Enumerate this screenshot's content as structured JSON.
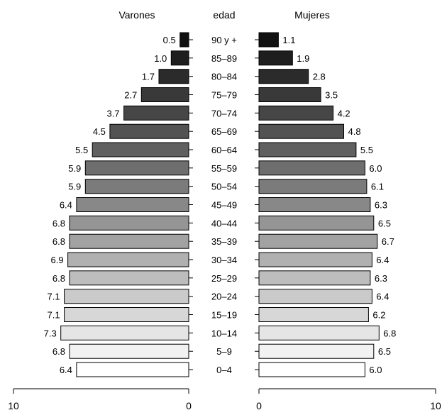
{
  "chart_data": {
    "type": "bar",
    "subtype": "population-pyramid",
    "headers": {
      "left": "Varones",
      "center": "edad",
      "right": "Mujeres"
    },
    "categories": [
      "90 y +",
      "85–89",
      "80–84",
      "75–79",
      "70–74",
      "65–69",
      "60–64",
      "55–59",
      "50–54",
      "45–49",
      "40–44",
      "35–39",
      "30–34",
      "25–29",
      "20–24",
      "15–19",
      "10–14",
      "5–9",
      "0–4"
    ],
    "series": [
      {
        "name": "Varones",
        "values": [
          0.5,
          1.0,
          1.7,
          2.7,
          3.7,
          4.5,
          5.5,
          5.9,
          5.9,
          6.4,
          6.8,
          6.8,
          6.9,
          6.8,
          7.1,
          7.1,
          7.3,
          6.8,
          6.4
        ],
        "labels": [
          "0.5",
          "1.0",
          "1.7",
          "2.7",
          "3.7",
          "4.5",
          "5.5",
          "5.9",
          "5.9",
          "6.4",
          "6.8",
          "6.8",
          "6.9",
          "6.8",
          "7.1",
          "7.1",
          "7.3",
          "6.8",
          "6.4"
        ]
      },
      {
        "name": "Mujeres",
        "values": [
          1.1,
          1.9,
          2.8,
          3.5,
          4.2,
          4.8,
          5.5,
          6.0,
          6.1,
          6.3,
          6.5,
          6.7,
          6.4,
          6.3,
          6.4,
          6.2,
          6.8,
          6.5,
          6.0
        ],
        "labels": [
          "1.1",
          "1.9",
          "2.8",
          "3.5",
          "4.2",
          "4.8",
          "5.5",
          "6.0",
          "6.1",
          "6.3",
          "6.5",
          "6.7",
          "6.4",
          "6.3",
          "6.4",
          "6.2",
          "6.8",
          "6.5",
          "6.0"
        ]
      }
    ],
    "left_axis": {
      "range": [
        10,
        0
      ],
      "ticks": [
        "10",
        "0"
      ]
    },
    "right_axis": {
      "range": [
        0,
        10
      ],
      "ticks": [
        "0",
        "10"
      ]
    },
    "bar_fill": "grayscale gradient from #111111 (oldest) to #ffffff (youngest)",
    "bar_stroke": "#000000",
    "grid": false,
    "legend": "none"
  }
}
